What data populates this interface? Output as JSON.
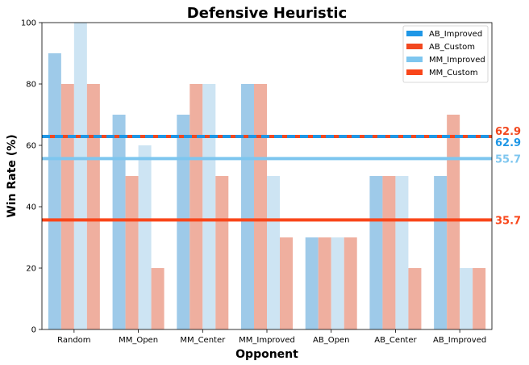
{
  "chart_data": {
    "type": "bar",
    "title": "Defensive Heuristic",
    "xlabel": "Opponent",
    "ylabel": "Win Rate (%)",
    "ylim": [
      0,
      100
    ],
    "yticks": [
      0,
      20,
      40,
      60,
      80,
      100
    ],
    "categories": [
      "Random",
      "MM_Open",
      "MM_Center",
      "MM_Improved",
      "AB_Open",
      "AB_Center",
      "AB_Improved"
    ],
    "series": [
      {
        "name": "AB_Improved",
        "color": "#9ecae9",
        "values": [
          90,
          70,
          70,
          80,
          30,
          50,
          50
        ]
      },
      {
        "name": "AB_Custom",
        "color": "#efaf9f",
        "values": [
          80,
          50,
          80,
          80,
          30,
          50,
          70
        ]
      },
      {
        "name": "MM_Improved",
        "color": "#cde4f3",
        "values": [
          100,
          60,
          80,
          50,
          30,
          50,
          20
        ]
      },
      {
        "name": "MM_Custom",
        "color": "#efaf9f",
        "values": [
          80,
          20,
          50,
          30,
          30,
          20,
          20
        ]
      }
    ],
    "reference_lines": [
      {
        "name": "AB_Improved",
        "value": 62.9,
        "label": "62.9",
        "color": "#1f97e6",
        "style": "dashed"
      },
      {
        "name": "AB_Custom",
        "value": 62.9,
        "label": "62.9",
        "color": "#f2481f",
        "style": "solid"
      },
      {
        "name": "MM_Improved",
        "value": 55.7,
        "label": "55.7",
        "color": "#7ec6ef",
        "style": "solid"
      },
      {
        "name": "MM_Custom",
        "value": 35.7,
        "label": "35.7",
        "color": "#f9461a",
        "style": "solid"
      }
    ],
    "legend": {
      "position": "top-right",
      "entries": [
        {
          "label": "AB_Improved",
          "color": "#1f97e6"
        },
        {
          "label": "AB_Custom",
          "color": "#f2481f"
        },
        {
          "label": "MM_Improved",
          "color": "#7ec6ef"
        },
        {
          "label": "MM_Custom",
          "color": "#f9461a"
        }
      ]
    },
    "grid": false
  }
}
